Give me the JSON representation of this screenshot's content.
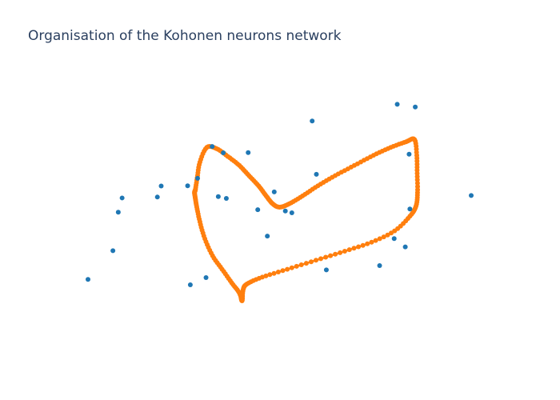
{
  "chart_data": {
    "type": "scatter",
    "title": "Organisation of the Kohonen neurons network",
    "xlabel": "",
    "ylabel": "",
    "xlim": [
      0,
      100
    ],
    "ylim": [
      0,
      100
    ],
    "grid": false,
    "axes_visible": false,
    "legend": "none",
    "series": [
      {
        "role": "input-points",
        "color": "#1f77b4",
        "mode": "markers",
        "x": [
          0.0,
          6.5,
          7.9,
          8.9,
          18.1,
          19.1,
          26.0,
          26.7,
          28.6,
          30.8,
          32.4,
          34.0,
          35.3,
          36.1,
          41.8,
          44.3,
          46.8,
          48.6,
          51.5,
          53.2,
          58.5,
          59.6,
          62.2,
          76.1,
          79.9,
          80.7,
          82.8,
          83.8,
          84.0,
          85.4,
          100.0
        ],
        "y": [
          18.0,
          30.7,
          47.8,
          54.1,
          54.5,
          59.4,
          59.5,
          15.6,
          62.8,
          18.8,
          76.9,
          54.7,
          74.1,
          53.9,
          74.2,
          48.9,
          37.2,
          56.8,
          48.3,
          47.5,
          88.2,
          64.6,
          22.2,
          24.1,
          36.1,
          95.6,
          32.4,
          73.5,
          49.2,
          94.4,
          55.2
        ]
      },
      {
        "role": "neuron-network",
        "color": "#ff7f0e",
        "mode": "lines+markers",
        "x": [
          28.0,
          28.5,
          29.2,
          31.0,
          33.5,
          36.5,
          39.5,
          42.0,
          44.5,
          46.5,
          48.2,
          50.0,
          52.5,
          56.0,
          60.0,
          64.5,
          69.5,
          74.5,
          79.0,
          83.0,
          85.2,
          85.8,
          85.9,
          86.0,
          85.6,
          84.0,
          80.0,
          74.0,
          67.0,
          59.5,
          52.0,
          45.5,
          41.5,
          40.5,
          40.2,
          39.5,
          37.5,
          35.0,
          32.5,
          30.5,
          29.2,
          28.4,
          28.0,
          27.8,
          28.0
        ],
        "y": [
          57.5,
          63.0,
          70.0,
          76.5,
          76.0,
          72.5,
          68.5,
          64.0,
          59.5,
          55.0,
          51.5,
          50.0,
          51.5,
          55.0,
          59.5,
          64.0,
          68.5,
          73.0,
          76.5,
          79.0,
          80.0,
          73.0,
          65.0,
          56.5,
          50.5,
          46.0,
          39.5,
          34.5,
          30.5,
          26.5,
          22.5,
          19.0,
          16.0,
          13.5,
          8.5,
          12.0,
          16.5,
          22.5,
          28.5,
          36.0,
          43.5,
          50.0,
          54.0,
          56.5,
          57.5
        ]
      }
    ]
  }
}
